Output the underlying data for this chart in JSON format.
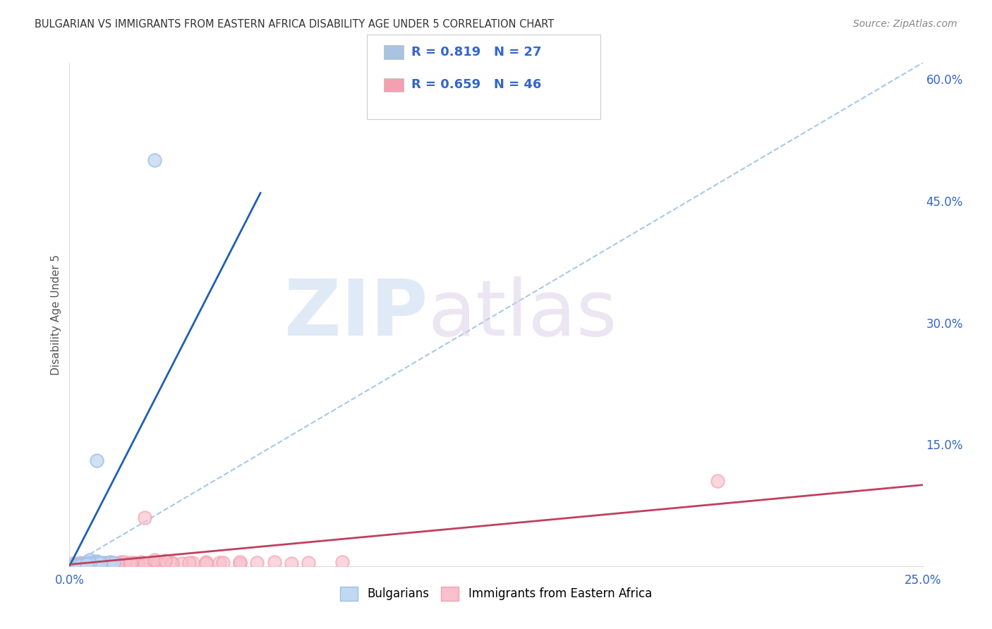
{
  "title": "BULGARIAN VS IMMIGRANTS FROM EASTERN AFRICA DISABILITY AGE UNDER 5 CORRELATION CHART",
  "source": "Source: ZipAtlas.com",
  "ylabel": "Disability Age Under 5",
  "r_box": [
    {
      "R": 0.819,
      "N": 27,
      "color": "#a8c4e0"
    },
    {
      "R": 0.659,
      "N": 46,
      "color": "#f4a0b0"
    }
  ],
  "blue_scatter_x": [
    0.001,
    0.002,
    0.003,
    0.004,
    0.005,
    0.006,
    0.007,
    0.008,
    0.009,
    0.01,
    0.011,
    0.012,
    0.013,
    0.005,
    0.003,
    0.006,
    0.008,
    0.004,
    0.007,
    0.009,
    0.002,
    0.004,
    0.006,
    0.003,
    0.005,
    0.008,
    0.025
  ],
  "blue_scatter_y": [
    0.001,
    0.002,
    0.001,
    0.003,
    0.005,
    0.008,
    0.003,
    0.006,
    0.002,
    0.004,
    0.003,
    0.005,
    0.004,
    0.002,
    0.001,
    0.003,
    0.005,
    0.002,
    0.003,
    0.004,
    0.001,
    0.002,
    0.003,
    0.001,
    0.002,
    0.13,
    0.5
  ],
  "pink_scatter_x": [
    0.001,
    0.002,
    0.003,
    0.005,
    0.007,
    0.009,
    0.011,
    0.013,
    0.015,
    0.017,
    0.019,
    0.021,
    0.023,
    0.025,
    0.027,
    0.03,
    0.033,
    0.036,
    0.04,
    0.044,
    0.05,
    0.055,
    0.06,
    0.065,
    0.07,
    0.08,
    0.009,
    0.012,
    0.016,
    0.02,
    0.004,
    0.006,
    0.008,
    0.014,
    0.018,
    0.022,
    0.026,
    0.03,
    0.035,
    0.04,
    0.045,
    0.05,
    0.022,
    0.025,
    0.19,
    0.028
  ],
  "pink_scatter_y": [
    0.003,
    0.002,
    0.004,
    0.003,
    0.005,
    0.003,
    0.004,
    0.003,
    0.005,
    0.003,
    0.004,
    0.005,
    0.003,
    0.004,
    0.005,
    0.004,
    0.003,
    0.004,
    0.005,
    0.004,
    0.003,
    0.004,
    0.005,
    0.003,
    0.004,
    0.005,
    0.003,
    0.004,
    0.005,
    0.003,
    0.002,
    0.003,
    0.004,
    0.003,
    0.004,
    0.003,
    0.004,
    0.003,
    0.004,
    0.003,
    0.004,
    0.005,
    0.06,
    0.008,
    0.105,
    0.007
  ],
  "blue_line_x": [
    0.0,
    0.056
  ],
  "blue_line_y": [
    0.0,
    0.46
  ],
  "dash_line_x": [
    0.0,
    0.25
  ],
  "dash_line_y": [
    0.0,
    0.62
  ],
  "pink_line_x": [
    0.0,
    0.25
  ],
  "pink_line_y": [
    0.002,
    0.1
  ],
  "blue_line_color": "#2060b0",
  "pink_line_color": "#c04060",
  "dashed_line_color": "#a8c8e8",
  "background_color": "#ffffff",
  "grid_color": "#cccccc",
  "text_color": "#3366cc",
  "title_color": "#333333",
  "source_color": "#888888",
  "ylabel_color": "#555555",
  "xlim": [
    0.0,
    0.25
  ],
  "ylim": [
    0.0,
    0.62
  ],
  "xticks": [
    0.0,
    0.25
  ],
  "xticklabels": [
    "0.0%",
    "25.0%"
  ],
  "yticks_right": [
    0.15,
    0.3,
    0.45,
    0.6
  ],
  "yticklabels_right": [
    "15.0%",
    "30.0%",
    "45.0%",
    "60.0%"
  ]
}
